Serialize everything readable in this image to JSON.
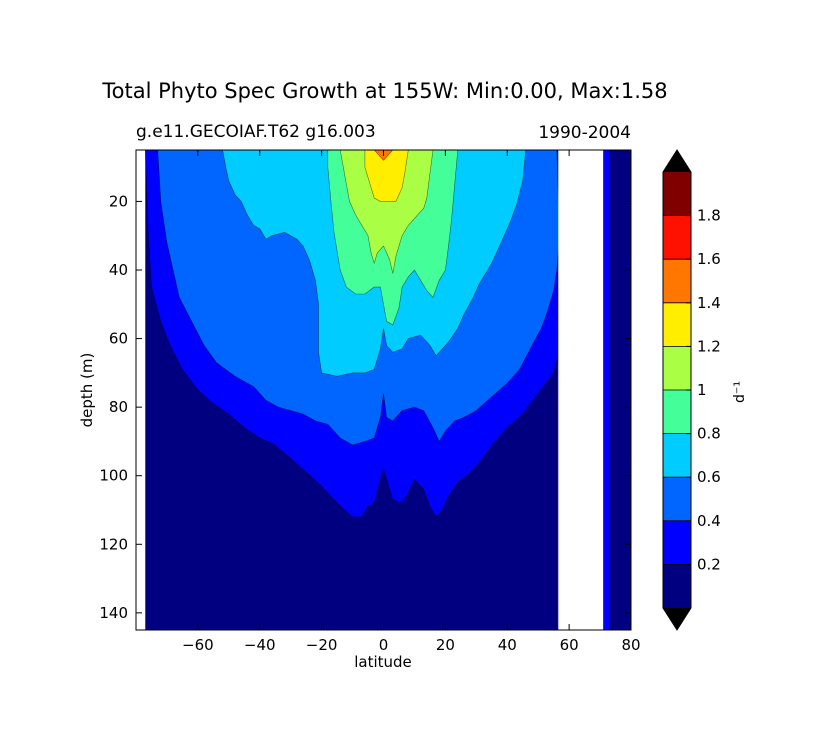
{
  "chart_data": {
    "type": "contourf",
    "title": "Total Phyto Spec Growth at 155W: Min:0.00, Max:1.58",
    "left_subtitle": "g.e11.GECOIAF.T62 g16.003",
    "right_subtitle": "1990-2004",
    "xlabel": "latitude",
    "ylabel": "depth (m)",
    "xlim": [
      -80,
      80
    ],
    "ylim": [
      5,
      145
    ],
    "y_inverted": true,
    "x_ticks": [
      {
        "value": -60,
        "label": "−60"
      },
      {
        "value": -40,
        "label": "−40"
      },
      {
        "value": -20,
        "label": "−20"
      },
      {
        "value": 0,
        "label": "0"
      },
      {
        "value": 20,
        "label": "20"
      },
      {
        "value": 40,
        "label": "40"
      },
      {
        "value": 60,
        "label": "60"
      },
      {
        "value": 80,
        "label": "80"
      }
    ],
    "y_ticks": [
      {
        "value": 20,
        "label": "20"
      },
      {
        "value": 40,
        "label": "40"
      },
      {
        "value": 60,
        "label": "60"
      },
      {
        "value": 80,
        "label": "80"
      },
      {
        "value": 100,
        "label": "100"
      },
      {
        "value": 120,
        "label": "120"
      },
      {
        "value": 140,
        "label": "140"
      }
    ],
    "contour_bands": [
      {
        "level": 0.2,
        "color": "#0000ff",
        "boundary": [
          [
            -77,
            5
          ],
          [
            -76,
            30
          ],
          [
            -75,
            45
          ],
          [
            -72,
            55
          ],
          [
            -69,
            62
          ],
          [
            -65,
            69
          ],
          [
            -60,
            75
          ],
          [
            -55,
            79
          ],
          [
            -50,
            82
          ],
          [
            -45,
            86
          ],
          [
            -40,
            89
          ],
          [
            -35,
            91
          ],
          [
            -30,
            95
          ],
          [
            -25,
            99
          ],
          [
            -20,
            103
          ],
          [
            -15,
            108
          ],
          [
            -10,
            112
          ],
          [
            -7,
            112
          ],
          [
            -5,
            109
          ],
          [
            -3,
            108
          ],
          [
            -1,
            101
          ],
          [
            0,
            98
          ],
          [
            1,
            101
          ],
          [
            3,
            107
          ],
          [
            6,
            108
          ],
          [
            8,
            105
          ],
          [
            10,
            101
          ],
          [
            13,
            104
          ],
          [
            15,
            109
          ],
          [
            17,
            112
          ],
          [
            19,
            110
          ],
          [
            21,
            106
          ],
          [
            24,
            102
          ],
          [
            28,
            99
          ],
          [
            32,
            95
          ],
          [
            36,
            90
          ],
          [
            40,
            86
          ],
          [
            45,
            82
          ],
          [
            50,
            76
          ],
          [
            55,
            70
          ],
          [
            56,
            66
          ],
          [
            56,
            145
          ],
          [
            73,
            145
          ],
          [
            73,
            5
          ]
        ]
      },
      {
        "level": 0.4,
        "color": "#0066ff",
        "boundary": [
          [
            -73,
            5
          ],
          [
            -72,
            20
          ],
          [
            -70,
            32
          ],
          [
            -68,
            40
          ],
          [
            -66,
            48
          ],
          [
            -62,
            55
          ],
          [
            -58,
            62
          ],
          [
            -54,
            67
          ],
          [
            -48,
            71
          ],
          [
            -42,
            74
          ],
          [
            -38,
            78
          ],
          [
            -34,
            80
          ],
          [
            -30,
            81
          ],
          [
            -26,
            82
          ],
          [
            -22,
            84
          ],
          [
            -18,
            85
          ],
          [
            -14,
            89
          ],
          [
            -10,
            91
          ],
          [
            -6,
            90
          ],
          [
            -3,
            89
          ],
          [
            -1,
            83
          ],
          [
            0,
            76
          ],
          [
            1,
            83
          ],
          [
            3,
            84
          ],
          [
            6,
            81
          ],
          [
            10,
            80
          ],
          [
            13,
            81
          ],
          [
            16,
            86
          ],
          [
            18,
            90
          ],
          [
            20,
            87
          ],
          [
            23,
            84
          ],
          [
            26,
            83
          ],
          [
            30,
            81
          ],
          [
            35,
            77
          ],
          [
            40,
            73
          ],
          [
            44,
            69
          ],
          [
            48,
            62
          ],
          [
            51,
            57
          ],
          [
            53,
            52
          ],
          [
            55,
            46
          ],
          [
            56,
            40
          ],
          [
            57,
            30
          ],
          [
            56,
            5
          ]
        ]
      },
      {
        "level": 0.6,
        "color": "#00ccff",
        "boundary": [
          [
            -52,
            5
          ],
          [
            -51,
            10
          ],
          [
            -50,
            14
          ],
          [
            -48,
            18
          ],
          [
            -46,
            20
          ],
          [
            -44,
            24
          ],
          [
            -42,
            27
          ],
          [
            -40,
            28
          ],
          [
            -38,
            31
          ],
          [
            -36,
            30
          ],
          [
            -32,
            29
          ],
          [
            -28,
            31
          ],
          [
            -26,
            33
          ],
          [
            -24,
            37
          ],
          [
            -22,
            43
          ],
          [
            -21,
            50
          ],
          [
            -21,
            58
          ],
          [
            -21,
            64
          ],
          [
            -20,
            70
          ],
          [
            -15,
            71
          ],
          [
            -10,
            70
          ],
          [
            -6,
            70
          ],
          [
            -3,
            69
          ],
          [
            -1,
            63
          ],
          [
            0,
            57
          ],
          [
            1,
            62
          ],
          [
            3,
            64
          ],
          [
            6,
            63
          ],
          [
            8,
            60
          ],
          [
            12,
            59
          ],
          [
            15,
            62
          ],
          [
            17,
            65
          ],
          [
            19,
            63
          ],
          [
            21,
            61
          ],
          [
            24,
            57
          ],
          [
            26,
            53
          ],
          [
            29,
            48
          ],
          [
            31,
            44
          ],
          [
            35,
            38
          ],
          [
            38,
            32
          ],
          [
            41,
            26
          ],
          [
            43,
            21
          ],
          [
            45,
            14
          ],
          [
            46,
            5
          ]
        ]
      },
      {
        "level": 0.8,
        "color": "#44ff99",
        "boundary": [
          [
            -18,
            5
          ],
          [
            -18,
            10
          ],
          [
            -17,
            20
          ],
          [
            -16,
            29
          ],
          [
            -14,
            40
          ],
          [
            -12,
            45
          ],
          [
            -9,
            47
          ],
          [
            -6,
            47
          ],
          [
            -3,
            45
          ],
          [
            -1,
            45
          ],
          [
            0,
            50
          ],
          [
            1,
            55
          ],
          [
            3,
            56
          ],
          [
            5,
            51
          ],
          [
            6,
            45
          ],
          [
            8,
            42
          ],
          [
            10,
            40
          ],
          [
            12,
            43
          ],
          [
            14,
            46
          ],
          [
            16,
            48
          ],
          [
            18,
            43
          ],
          [
            20,
            40
          ],
          [
            21,
            33
          ],
          [
            22,
            25
          ],
          [
            23,
            15
          ],
          [
            24,
            5
          ]
        ]
      },
      {
        "level": 1.0,
        "color": "#aaff44",
        "boundary": [
          [
            -14,
            5
          ],
          [
            -13,
            10
          ],
          [
            -12,
            15
          ],
          [
            -11,
            20
          ],
          [
            -9,
            24
          ],
          [
            -7,
            27
          ],
          [
            -5,
            30
          ],
          [
            -4,
            35
          ],
          [
            -3,
            38
          ],
          [
            -2,
            35
          ],
          [
            0,
            33
          ],
          [
            2,
            37
          ],
          [
            3,
            41
          ],
          [
            4,
            36
          ],
          [
            6,
            30
          ],
          [
            8,
            27
          ],
          [
            10,
            25
          ],
          [
            12,
            23
          ],
          [
            13,
            22
          ],
          [
            14,
            19
          ],
          [
            15,
            12
          ],
          [
            16,
            5
          ]
        ]
      },
      {
        "level": 1.2,
        "color": "#ffee00",
        "boundary": [
          [
            -6,
            5
          ],
          [
            -6,
            10
          ],
          [
            -5,
            13
          ],
          [
            -4,
            16
          ],
          [
            -3,
            19
          ],
          [
            -1,
            20
          ],
          [
            2,
            20
          ],
          [
            4,
            20
          ],
          [
            6,
            16
          ],
          [
            7,
            11
          ],
          [
            8,
            5
          ]
        ]
      },
      {
        "level": 1.4,
        "color": "#ff7700",
        "boundary": [
          [
            -3,
            5
          ],
          [
            -2,
            6
          ],
          [
            -1,
            7
          ],
          [
            0,
            8
          ],
          [
            1,
            7
          ],
          [
            2,
            6
          ],
          [
            3,
            5
          ]
        ]
      }
    ],
    "missing_data_region": {
      "lat_min": 56.5,
      "lat_max": 71,
      "depth_min": 5,
      "depth_max": 145
    },
    "colorbar": {
      "label": "d⁻¹",
      "levels": [
        0,
        0.2,
        0.4,
        0.6,
        0.8,
        1.0,
        1.2,
        1.4,
        1.6,
        1.8,
        2.0
      ],
      "colors": [
        "#000080",
        "#0000ff",
        "#0066ff",
        "#00ccff",
        "#44ff99",
        "#aaff44",
        "#ffee00",
        "#ff7700",
        "#ff1100",
        "#800000"
      ],
      "under_color": "#000000",
      "over_color": "#000000",
      "tick_labels": [
        {
          "value": 0.2,
          "label": "0.2"
        },
        {
          "value": 0.4,
          "label": "0.4"
        },
        {
          "value": 0.6,
          "label": "0.6"
        },
        {
          "value": 0.8,
          "label": "0.8"
        },
        {
          "value": 1.0,
          "label": "1"
        },
        {
          "value": 1.2,
          "label": "1.2"
        },
        {
          "value": 1.4,
          "label": "1.4"
        },
        {
          "value": 1.6,
          "label": "1.6"
        },
        {
          "value": 1.8,
          "label": "1.8"
        }
      ]
    }
  }
}
